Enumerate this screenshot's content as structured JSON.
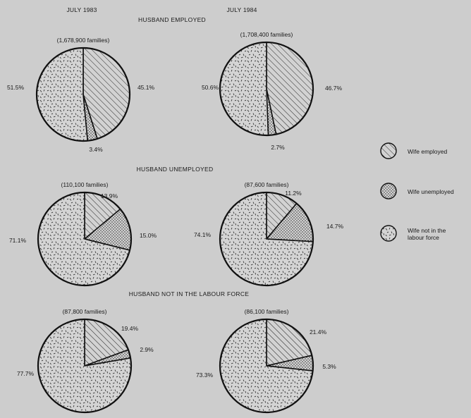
{
  "headers": {
    "left": "JULY 1983",
    "right": "JULY 1984"
  },
  "legend": [
    {
      "key": "employed",
      "label": "Wife employed"
    },
    {
      "key": "unemployed",
      "label": "Wife unemployed"
    },
    {
      "key": "not_in_lf",
      "label": "Wife not in the labour force"
    }
  ],
  "chart_data": [
    {
      "type": "pie",
      "section": "HUSBAND EMPLOYED",
      "period": "JULY 1983",
      "families": "(1,678,900 families)",
      "slices": [
        {
          "key": "employed",
          "value": 45.1,
          "label": "45.1%"
        },
        {
          "key": "unemployed",
          "value": 3.4,
          "label": "3.4%"
        },
        {
          "key": "not_in_lf",
          "value": 51.5,
          "label": "51.5%"
        }
      ]
    },
    {
      "type": "pie",
      "section": "HUSBAND EMPLOYED",
      "period": "JULY 1984",
      "families": "(1,708,400 families)",
      "slices": [
        {
          "key": "employed",
          "value": 46.7,
          "label": "46.7%"
        },
        {
          "key": "unemployed",
          "value": 2.7,
          "label": "2.7%"
        },
        {
          "key": "not_in_lf",
          "value": 50.6,
          "label": "50.6%"
        }
      ]
    },
    {
      "type": "pie",
      "section": "HUSBAND UNEMPLOYED",
      "period": "JULY 1983",
      "families": "(110,100 families)",
      "slices": [
        {
          "key": "employed",
          "value": 13.9,
          "label": "13.9%"
        },
        {
          "key": "unemployed",
          "value": 15.0,
          "label": "15.0%"
        },
        {
          "key": "not_in_lf",
          "value": 71.1,
          "label": "71.1%"
        }
      ]
    },
    {
      "type": "pie",
      "section": "HUSBAND UNEMPLOYED",
      "period": "JULY 1984",
      "families": "(87,600 families)",
      "slices": [
        {
          "key": "employed",
          "value": 11.2,
          "label": "11.2%"
        },
        {
          "key": "unemployed",
          "value": 14.7,
          "label": "14.7%"
        },
        {
          "key": "not_in_lf",
          "value": 74.1,
          "label": "74.1%"
        }
      ]
    },
    {
      "type": "pie",
      "section": "HUSBAND NOT IN THE LABOUR FORCE",
      "period": "JULY 1983",
      "families": "(87,800 families)",
      "slices": [
        {
          "key": "employed",
          "value": 19.4,
          "label": "19.4%"
        },
        {
          "key": "unemployed",
          "value": 2.9,
          "label": "2.9%"
        },
        {
          "key": "not_in_lf",
          "value": 77.7,
          "label": "77.7%"
        }
      ]
    },
    {
      "type": "pie",
      "section": "HUSBAND NOT IN THE LABOUR FORCE",
      "period": "JULY 1984",
      "families": "(86,100 families)",
      "slices": [
        {
          "key": "employed",
          "value": 21.4,
          "label": "21.4%"
        },
        {
          "key": "unemployed",
          "value": 5.3,
          "label": "5.3%"
        },
        {
          "key": "not_in_lf",
          "value": 73.3,
          "label": "73.3%"
        }
      ]
    }
  ]
}
